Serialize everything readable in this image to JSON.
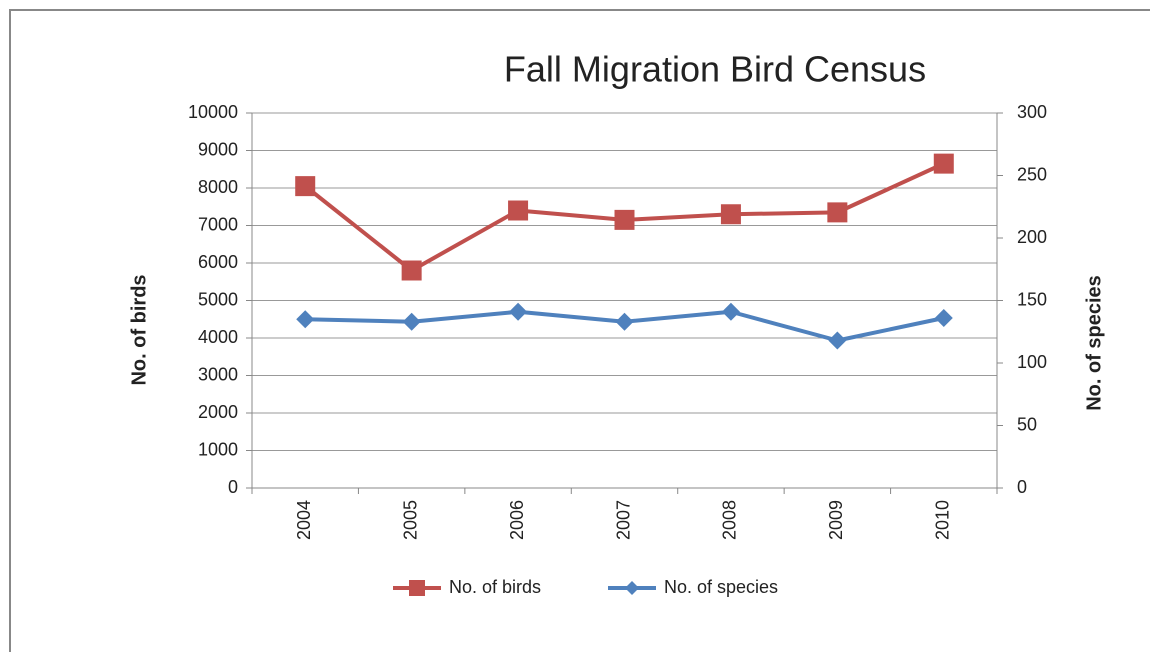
{
  "chart_data": {
    "type": "line",
    "title": "Fall Migration Bird Census",
    "y_label": "No. of birds",
    "y2_label": "No. of species",
    "categories": [
      "2004",
      "2005",
      "2006",
      "2007",
      "2008",
      "2009",
      "2010"
    ],
    "series": [
      {
        "name": "No. of birds",
        "color": "#c0504d",
        "marker": "square",
        "values": [
          8050,
          5800,
          7400,
          7150,
          7300,
          7350,
          8650
        ]
      },
      {
        "name": "No. of species",
        "color": "#4f81bd",
        "marker": "diamond",
        "axis": "y2",
        "values": [
          135,
          133,
          141,
          133,
          141,
          118,
          136
        ]
      }
    ],
    "ylim": [
      0,
      10000
    ],
    "yticks": [
      0,
      1000,
      2000,
      3000,
      4000,
      5000,
      6000,
      7000,
      8000,
      9000,
      10000
    ],
    "y2lim": [
      0,
      300
    ],
    "y2ticks": [
      0,
      50,
      100,
      150,
      200,
      250,
      300
    ],
    "grid": true,
    "legend": "bottom"
  }
}
